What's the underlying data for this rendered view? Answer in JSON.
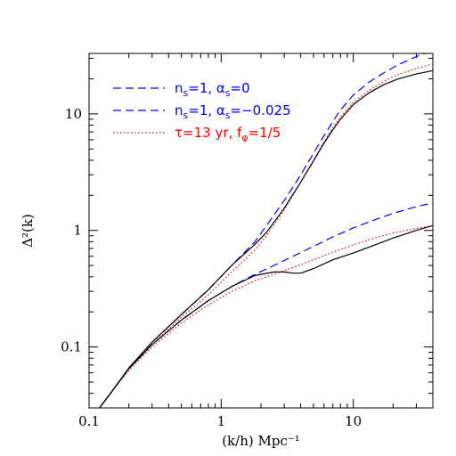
{
  "chart_data": {
    "type": "line",
    "title": "",
    "xlabel": "(k/h) Mpc⁻¹",
    "ylabel": "Δ²(k)",
    "xscale": "log",
    "yscale": "log",
    "xlim": [
      0.1,
      40
    ],
    "ylim": [
      0.03,
      33
    ],
    "x_ticks": [
      {
        "value": 0.1,
        "label": "0.1"
      },
      {
        "value": 1,
        "label": "1"
      },
      {
        "value": 10,
        "label": "10"
      }
    ],
    "y_ticks": [
      {
        "value": 0.1,
        "label": "0.1"
      },
      {
        "value": 1,
        "label": "1"
      },
      {
        "value": 10,
        "label": "10"
      }
    ],
    "grid": false,
    "legend": {
      "placement": "top-left",
      "entries": [
        {
          "series": 0,
          "parts": [
            [
              "n",
              ""
            ],
            [
              "s",
              "sub"
            ],
            [
              "=1,  ",
              ""
            ],
            [
              "α",
              ""
            ],
            [
              "s",
              "sub"
            ],
            [
              "=0",
              ""
            ]
          ]
        },
        {
          "series": 1,
          "parts": [
            [
              "n",
              ""
            ],
            [
              "s",
              "sub"
            ],
            [
              "=1,  ",
              ""
            ],
            [
              "α",
              ""
            ],
            [
              "s",
              "sub"
            ],
            [
              "=−0.025",
              ""
            ]
          ]
        },
        {
          "series": 2,
          "parts": [
            [
              "τ=13 yr,  f",
              ""
            ],
            [
              "φ",
              "sub"
            ],
            [
              "=1/5",
              ""
            ]
          ]
        }
      ]
    },
    "series": [
      {
        "style": "dashed",
        "color": "#0000ff",
        "x": [
          0.12,
          0.15,
          0.2,
          0.3,
          0.5,
          0.8,
          1.2,
          1.8,
          2.2,
          3,
          4,
          5,
          6,
          7,
          8,
          10,
          13,
          17,
          22,
          30,
          40
        ],
        "y": [
          0.03,
          0.042,
          0.066,
          0.11,
          0.19,
          0.31,
          0.5,
          0.8,
          1.1,
          1.8,
          3.0,
          4.6,
          6.5,
          8.6,
          10.8,
          14.5,
          18.5,
          22.5,
          26.5,
          31,
          35
        ]
      },
      {
        "style": "dashed",
        "color": "#0000ff",
        "x": [
          0.12,
          0.15,
          0.2,
          0.3,
          0.5,
          0.8,
          1.2,
          1.8,
          2.5,
          3.5,
          5,
          7,
          10,
          15,
          20,
          30,
          40
        ],
        "y": [
          0.03,
          0.042,
          0.065,
          0.105,
          0.17,
          0.25,
          0.33,
          0.42,
          0.5,
          0.6,
          0.73,
          0.88,
          1.05,
          1.25,
          1.4,
          1.6,
          1.72
        ]
      },
      {
        "style": "dotted",
        "color": "#ff0000",
        "x": [
          0.12,
          0.15,
          0.2,
          0.3,
          0.5,
          0.8,
          1.2,
          1.8,
          2.2,
          3,
          4,
          5,
          6,
          7,
          8,
          10,
          13,
          17,
          22,
          30,
          40
        ],
        "y": [
          0.03,
          0.042,
          0.065,
          0.105,
          0.18,
          0.28,
          0.44,
          0.68,
          0.9,
          1.5,
          2.6,
          4.0,
          5.8,
          7.6,
          9.4,
          12.5,
          15.8,
          19.0,
          21.8,
          24.5,
          26.8
        ]
      },
      {
        "style": "dotted",
        "color": "#ff0000",
        "x": [
          0.12,
          0.15,
          0.2,
          0.3,
          0.5,
          0.8,
          1.2,
          1.8,
          2.5,
          3.5,
          5,
          7,
          10,
          15,
          20,
          30,
          40
        ],
        "y": [
          0.03,
          0.042,
          0.063,
          0.1,
          0.16,
          0.23,
          0.3,
          0.37,
          0.42,
          0.48,
          0.56,
          0.65,
          0.75,
          0.87,
          0.95,
          1.04,
          1.1
        ]
      },
      {
        "style": "solid",
        "color": "#000000",
        "x": [
          0.12,
          0.15,
          0.2,
          0.3,
          0.5,
          0.8,
          1.2,
          1.8,
          2.2,
          3,
          4,
          5,
          6,
          7,
          8,
          10,
          13,
          17,
          22,
          30,
          40
        ],
        "y": [
          0.03,
          0.042,
          0.066,
          0.11,
          0.19,
          0.31,
          0.5,
          0.76,
          0.96,
          1.55,
          2.6,
          3.95,
          5.6,
          7.3,
          9.0,
          12.0,
          15.0,
          17.8,
          20.0,
          22.0,
          23.5
        ]
      },
      {
        "style": "solid",
        "color": "#000000",
        "x": [
          0.12,
          0.15,
          0.2,
          0.3,
          0.5,
          0.8,
          1.2,
          1.8,
          2.5,
          3,
          3.5,
          4,
          5,
          7,
          10,
          15,
          20,
          30,
          40
        ],
        "y": [
          0.03,
          0.042,
          0.065,
          0.105,
          0.17,
          0.25,
          0.33,
          0.41,
          0.44,
          0.44,
          0.43,
          0.43,
          0.47,
          0.56,
          0.64,
          0.76,
          0.86,
          1.0,
          1.1
        ]
      }
    ]
  }
}
